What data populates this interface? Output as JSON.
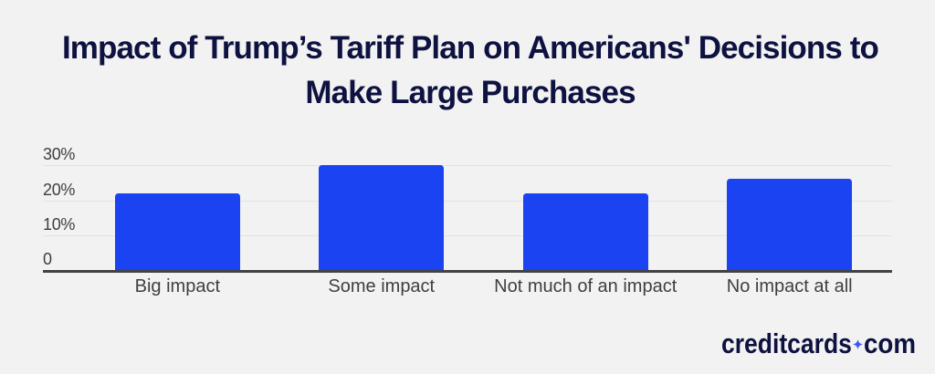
{
  "page": {
    "background": "#f2f2f2"
  },
  "title": {
    "lines": [
      "Impact of Trump’s Tariff Plan on Americans' Decisions to",
      "Make Large Purchases"
    ]
  },
  "chart_data": {
    "type": "bar",
    "title": "Impact of Trump’s Tariff Plan on Americans' Decisions to Make Large Purchases",
    "categories": [
      "Big impact",
      "Some impact",
      "Not much of an impact",
      "No impact at all"
    ],
    "values": [
      22,
      30,
      22,
      26
    ],
    "unit": "percent",
    "xlabel": "",
    "ylabel": "",
    "ylim": [
      0,
      30
    ],
    "y_ticks": [
      "30%",
      "20%",
      "10%",
      "0"
    ],
    "y_tick_values": [
      30,
      20,
      10,
      0
    ],
    "grid": true,
    "legend": false,
    "bar_color": "#1b43f2",
    "axis_line_color": "#424242",
    "gridline_color": "#e3e3e3",
    "label_color": "#3f3f3f",
    "title_color": "#0e1240"
  },
  "branding": {
    "wordmark_left": "creditcards",
    "wordmark_right": "com",
    "separator_icon": "sparkle-icon",
    "text_color": "#0e1240",
    "sparkle_color": "#4053f5"
  }
}
